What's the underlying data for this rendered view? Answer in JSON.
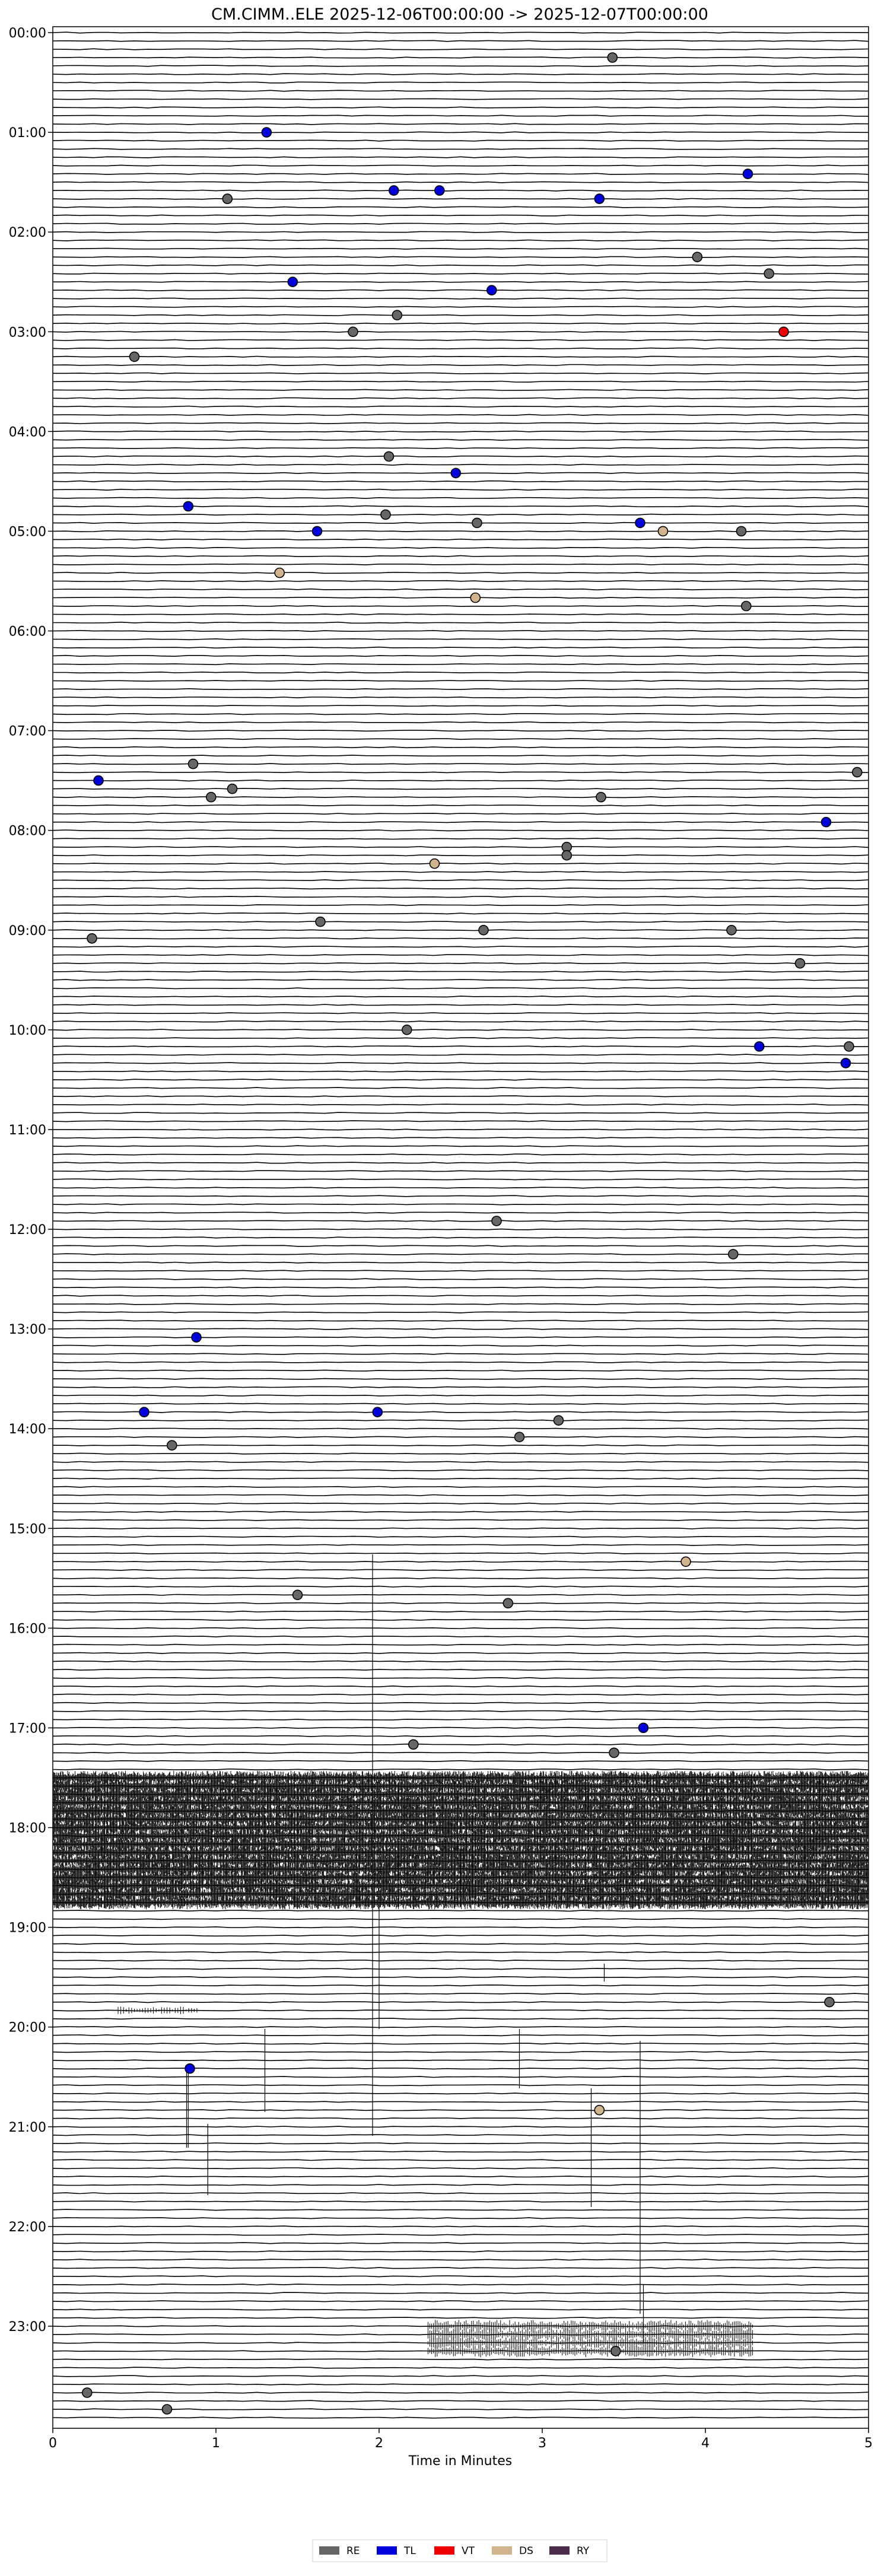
{
  "chart_data": {
    "type": "scatter",
    "title": "CM.CIMM..ELE  2025-12-06T00:00:00 -> 2025-12-07T00:00:00",
    "xlabel": "Time in Minutes",
    "ylabel": "",
    "xlim": [
      0,
      5
    ],
    "x_ticks": [
      0,
      1,
      2,
      3,
      4,
      5
    ],
    "y_ticks": [
      "00:00",
      "01:00",
      "02:00",
      "03:00",
      "04:00",
      "05:00",
      "06:00",
      "07:00",
      "08:00",
      "09:00",
      "10:00",
      "11:00",
      "12:00",
      "13:00",
      "14:00",
      "15:00",
      "16:00",
      "17:00",
      "18:00",
      "19:00",
      "20:00",
      "21:00",
      "22:00",
      "23:00"
    ],
    "trace_minutes": 5,
    "traces_per_hour": 12,
    "grid": false,
    "legend_position": "bottom-center",
    "legend": [
      {
        "code": "RE",
        "color": "#666666"
      },
      {
        "code": "TL",
        "color": "#0000dd"
      },
      {
        "code": "VT",
        "color": "#ee0000"
      },
      {
        "code": "DS",
        "color": "#d2b48c"
      },
      {
        "code": "RY",
        "color": "#4a2c4a"
      }
    ],
    "events": [
      {
        "time": "00:15",
        "minute": 3.43,
        "class": "RE"
      },
      {
        "time": "01:00",
        "minute": 1.31,
        "class": "TL"
      },
      {
        "time": "01:25",
        "minute": 4.26,
        "class": "TL"
      },
      {
        "time": "01:35",
        "minute": 2.09,
        "class": "TL"
      },
      {
        "time": "01:35",
        "minute": 2.37,
        "class": "TL"
      },
      {
        "time": "01:40",
        "minute": 1.07,
        "class": "RE"
      },
      {
        "time": "01:40",
        "minute": 3.35,
        "class": "TL"
      },
      {
        "time": "02:15",
        "minute": 3.95,
        "class": "RE"
      },
      {
        "time": "02:25",
        "minute": 4.39,
        "class": "RE"
      },
      {
        "time": "02:30",
        "minute": 1.47,
        "class": "TL"
      },
      {
        "time": "02:35",
        "minute": 2.69,
        "class": "TL"
      },
      {
        "time": "02:50",
        "minute": 2.11,
        "class": "RE"
      },
      {
        "time": "03:00",
        "minute": 1.84,
        "class": "RE"
      },
      {
        "time": "03:00",
        "minute": 4.48,
        "class": "VT"
      },
      {
        "time": "03:15",
        "minute": 0.5,
        "class": "RE"
      },
      {
        "time": "04:15",
        "minute": 2.06,
        "class": "RE"
      },
      {
        "time": "04:25",
        "minute": 2.47,
        "class": "TL"
      },
      {
        "time": "04:45",
        "minute": 0.83,
        "class": "TL"
      },
      {
        "time": "04:50",
        "minute": 2.04,
        "class": "RE"
      },
      {
        "time": "04:55",
        "minute": 2.6,
        "class": "RE"
      },
      {
        "time": "04:55",
        "minute": 3.6,
        "class": "TL"
      },
      {
        "time": "05:00",
        "minute": 1.62,
        "class": "TL"
      },
      {
        "time": "05:00",
        "minute": 3.74,
        "class": "DS"
      },
      {
        "time": "05:00",
        "minute": 4.22,
        "class": "RE"
      },
      {
        "time": "05:25",
        "minute": 1.39,
        "class": "DS"
      },
      {
        "time": "05:40",
        "minute": 2.59,
        "class": "DS"
      },
      {
        "time": "05:45",
        "minute": 4.25,
        "class": "RE"
      },
      {
        "time": "07:20",
        "minute": 0.86,
        "class": "RE"
      },
      {
        "time": "07:25",
        "minute": 4.93,
        "class": "RE"
      },
      {
        "time": "07:30",
        "minute": 0.28,
        "class": "TL"
      },
      {
        "time": "07:35",
        "minute": 1.1,
        "class": "RE"
      },
      {
        "time": "07:40",
        "minute": 0.97,
        "class": "RE"
      },
      {
        "time": "07:40",
        "minute": 3.36,
        "class": "RE"
      },
      {
        "time": "07:55",
        "minute": 4.74,
        "class": "TL"
      },
      {
        "time": "08:10",
        "minute": 3.15,
        "class": "RE"
      },
      {
        "time": "08:15",
        "minute": 3.15,
        "class": "RE"
      },
      {
        "time": "08:20",
        "minute": 2.34,
        "class": "DS"
      },
      {
        "time": "08:55",
        "minute": 1.64,
        "class": "RE"
      },
      {
        "time": "09:00",
        "minute": 2.64,
        "class": "RE"
      },
      {
        "time": "09:00",
        "minute": 4.16,
        "class": "RE"
      },
      {
        "time": "09:05",
        "minute": 0.24,
        "class": "RE"
      },
      {
        "time": "09:20",
        "minute": 4.58,
        "class": "RE"
      },
      {
        "time": "10:00",
        "minute": 2.17,
        "class": "RE"
      },
      {
        "time": "10:10",
        "minute": 4.33,
        "class": "TL"
      },
      {
        "time": "10:10",
        "minute": 4.88,
        "class": "RE"
      },
      {
        "time": "10:20",
        "minute": 4.86,
        "class": "TL"
      },
      {
        "time": "11:55",
        "minute": 2.72,
        "class": "RE"
      },
      {
        "time": "12:15",
        "minute": 4.17,
        "class": "RE"
      },
      {
        "time": "13:05",
        "minute": 0.88,
        "class": "TL"
      },
      {
        "time": "13:50",
        "minute": 0.56,
        "class": "TL"
      },
      {
        "time": "13:50",
        "minute": 1.99,
        "class": "TL"
      },
      {
        "time": "13:55",
        "minute": 3.1,
        "class": "RE"
      },
      {
        "time": "14:05",
        "minute": 2.86,
        "class": "RE"
      },
      {
        "time": "14:10",
        "minute": 0.73,
        "class": "RE"
      },
      {
        "time": "15:20",
        "minute": 3.88,
        "class": "DS"
      },
      {
        "time": "15:40",
        "minute": 1.5,
        "class": "RE"
      },
      {
        "time": "15:45",
        "minute": 2.79,
        "class": "RE"
      },
      {
        "time": "17:00",
        "minute": 3.62,
        "class": "TL"
      },
      {
        "time": "17:10",
        "minute": 2.21,
        "class": "RE"
      },
      {
        "time": "17:15",
        "minute": 3.44,
        "class": "RE"
      },
      {
        "time": "19:45",
        "minute": 4.76,
        "class": "RE"
      },
      {
        "time": "20:25",
        "minute": 0.84,
        "class": "TL"
      },
      {
        "time": "20:50",
        "minute": 3.35,
        "class": "DS"
      },
      {
        "time": "23:15",
        "minute": 3.45,
        "class": "RE"
      },
      {
        "time": "23:40",
        "minute": 0.21,
        "class": "RE"
      },
      {
        "time": "23:50",
        "minute": 0.7,
        "class": "RE"
      }
    ]
  }
}
